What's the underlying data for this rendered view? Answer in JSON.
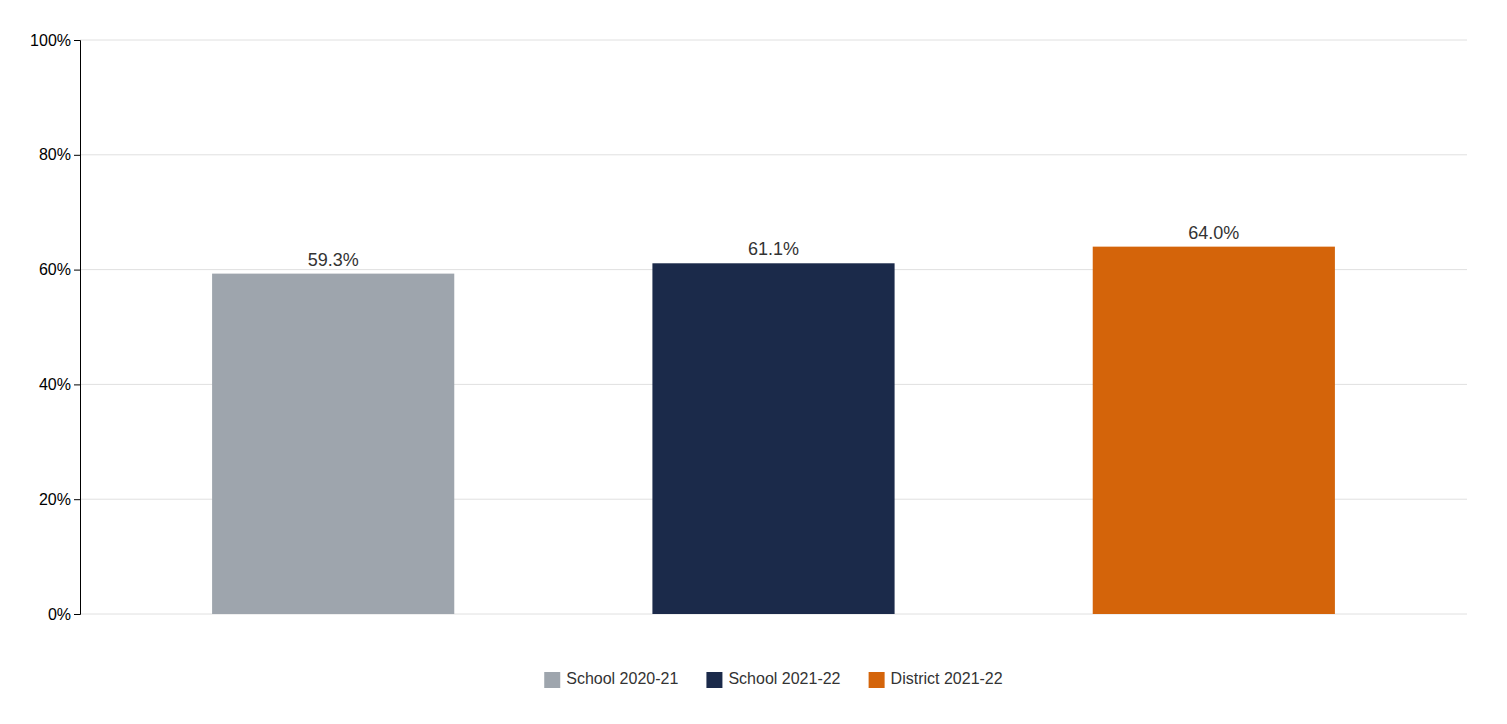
{
  "chart_data": {
    "type": "bar",
    "categories": [
      "School 2020-21",
      "School 2021-22",
      "District 2021-22"
    ],
    "values": [
      0.593,
      0.611,
      0.64
    ],
    "value_labels": [
      "59.3%",
      "61.1%",
      "64.0%"
    ],
    "colors": [
      "#9ea5ad",
      "#1b2a4a",
      "#d4640a"
    ],
    "ylim": [
      0,
      1.0
    ],
    "yticks": [
      {
        "value": 0.0,
        "label": "0%"
      },
      {
        "value": 0.2,
        "label": "20%"
      },
      {
        "value": 0.4,
        "label": "40%"
      },
      {
        "value": 0.6,
        "label": "60%"
      },
      {
        "value": 0.8,
        "label": "80%"
      },
      {
        "value": 1.0,
        "label": "100%"
      }
    ],
    "grid": true,
    "data_labels": true,
    "tick_labels": "y",
    "legend": "bottom"
  }
}
